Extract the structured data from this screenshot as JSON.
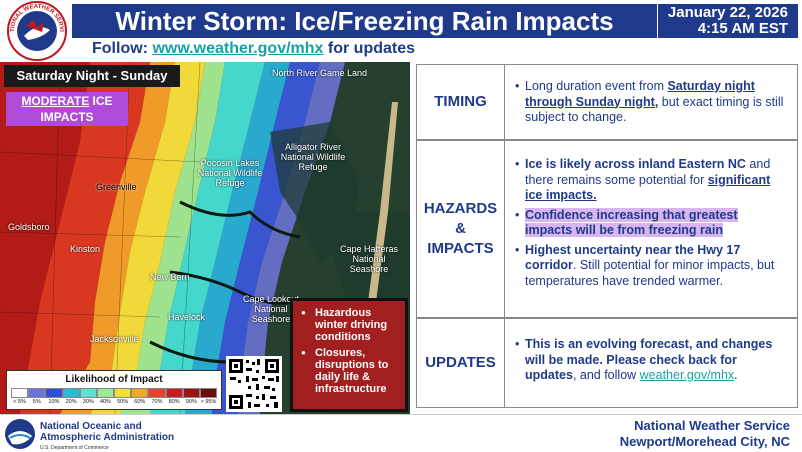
{
  "header": {
    "title": "Winter Storm: Ice/Freezing Rain Impacts",
    "date": "January 22, 2026",
    "time": "4:15 AM EST",
    "follow_prefix": "Follow: ",
    "follow_link": "www.weather.gov/mhx",
    "follow_suffix": " for updates",
    "logo_text": "NATIONAL WEATHER SERVICE"
  },
  "map": {
    "period": "Saturday Night - Sunday",
    "badge_strong": "MODERATE",
    "badge_rest": " ICE IMPACTS",
    "labels": {
      "north_river": "North River Game Land",
      "alligator": "Alligator River National Wildlife Refuge",
      "pocosin": "Pocosin Lakes National Wildlife Refuge",
      "greenville": "Greenville",
      "goldsboro": "Goldsboro",
      "kinston": "Kinston",
      "new_bern": "New Bern",
      "havelock": "Havelock",
      "jacksonville": "Jacksonville",
      "cape_hatteras": "Cape Hatteras National Seashore",
      "cape_lookout": "Cape Lookout National Seashore"
    }
  },
  "legend": {
    "title": "Likelihood of Impact",
    "ticks": [
      "< 5%",
      "5%",
      "10%",
      "20%",
      "30%",
      "40%",
      "50%",
      "60%",
      "70%",
      "80%",
      "90%",
      "> 95%"
    ],
    "colors": [
      "#ffffff",
      "#6a72e0",
      "#2d4fd1",
      "#2fb8d6",
      "#5fe0d0",
      "#9ee89a",
      "#f2e03a",
      "#f0a82a",
      "#e2452a",
      "#c21c1c",
      "#9a1414",
      "#6e0c0c"
    ]
  },
  "hazard_box": {
    "items": [
      "Hazardous winter driving conditions",
      "Closures, disruptions to daily life & infrastructure"
    ]
  },
  "table": {
    "timing": {
      "label": "TIMING",
      "t1": "Long duration event from ",
      "t2": "Saturday night through Sunday night,",
      "t3": " but exact timing is still subject to change."
    },
    "hazards": {
      "label_1": "HAZARDS",
      "label_2": "&",
      "label_3": "IMPACTS",
      "b1_bold": "Ice is likely across inland Eastern NC",
      "b1_rest": " and there remains some potential for ",
      "b1_ul": "significant ice impacts.",
      "b2": "Confidence increasing that greatest impacts will be from freezing rain",
      "b3_bold": "Highest uncertainty near the Hwy 17 corridor",
      "b3_rest": ". Still potential for minor impacts, but temperatures have trended warmer."
    },
    "updates": {
      "label": "UPDATES",
      "t1": "This is an evolving forecast, and changes will be made. Please check back for updates",
      "t2": ", and follow ",
      "t3": "weather.gov/mhx",
      "t4": "."
    }
  },
  "footer": {
    "noaa_line1": "National Oceanic and",
    "noaa_line2": "Atmospheric Administration",
    "noaa_line3": "U.S. Department of Commerce",
    "office_line1": "National Weather Service",
    "office_line2": "Newport/Morehead City, NC"
  }
}
